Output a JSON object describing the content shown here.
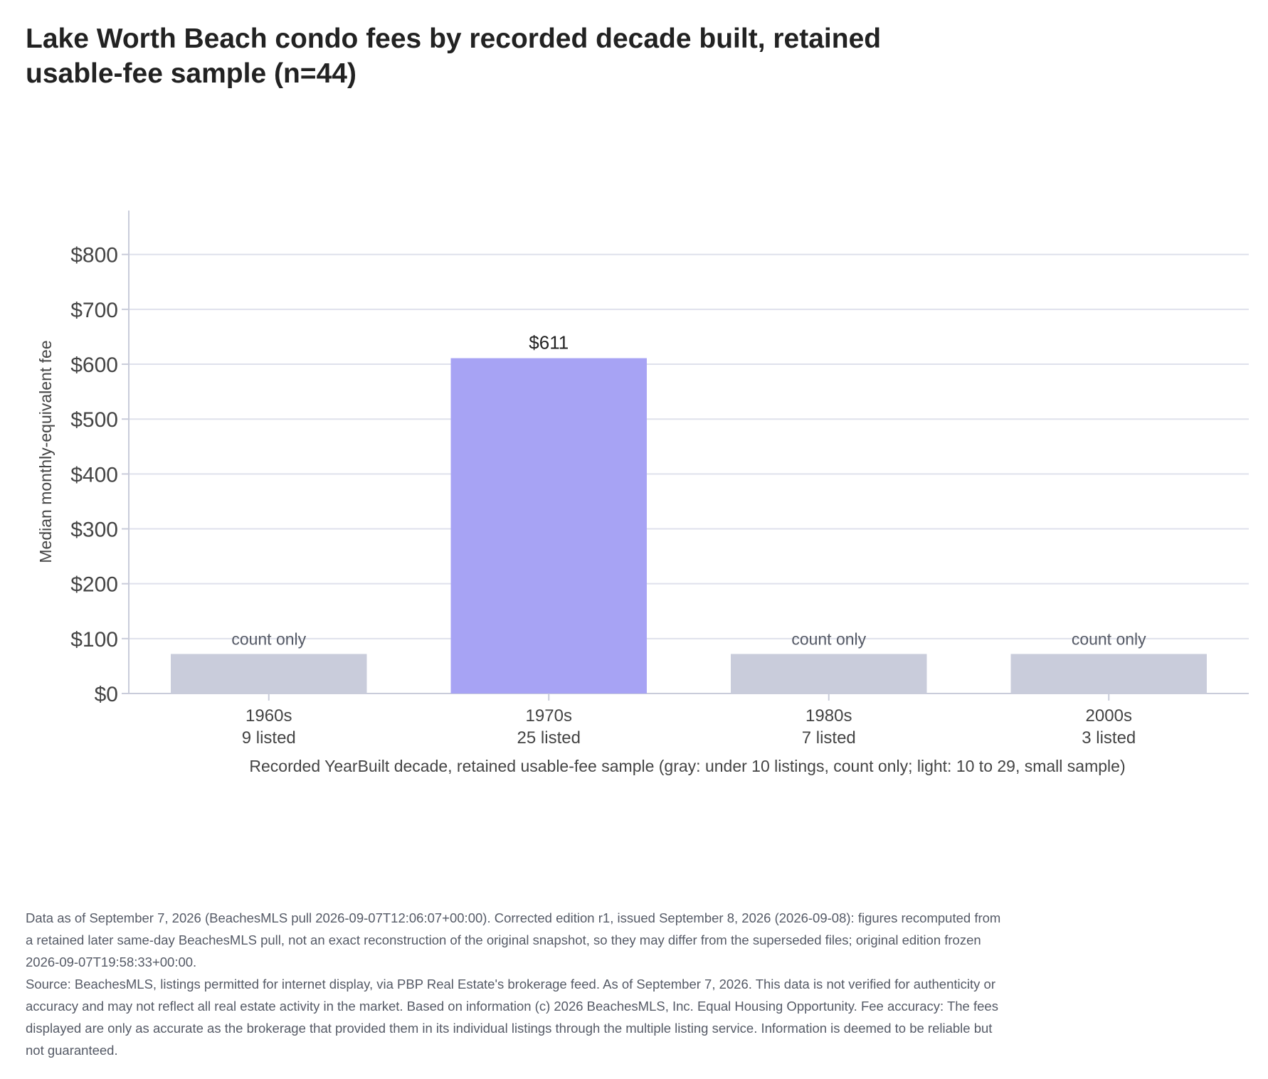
{
  "title": "Lake Worth Beach condo fees by recorded decade built, retained usable-fee sample (n=44)",
  "chart_data": {
    "type": "bar",
    "title": "Lake Worth Beach condo fees by recorded decade built, retained usable-fee sample (n=44)",
    "xlabel": "Recorded YearBuilt decade, retained usable-fee sample (gray: under 10 listings, count only; light: 10 to 29, small sample)",
    "ylabel": "Median monthly-equivalent fee",
    "ylim": [
      0,
      880
    ],
    "yticks": [
      0,
      100,
      200,
      300,
      400,
      500,
      600,
      700,
      800
    ],
    "ytick_labels": [
      "$0",
      "$100",
      "$200",
      "$300",
      "$400",
      "$500",
      "$600",
      "$700",
      "$800"
    ],
    "grid": true,
    "categories": [
      "1960s",
      "1970s",
      "1980s",
      "2000s"
    ],
    "counts_labels": [
      "9 listed",
      "25 listed",
      "7 listed",
      "3 listed"
    ],
    "counts": [
      9,
      25,
      7,
      3
    ],
    "values": [
      null,
      611,
      null,
      null
    ],
    "placeholder_value": 72,
    "bar_labels": [
      "count only",
      "$611",
      "count only",
      "count only"
    ],
    "bar_kinds": [
      "count-only",
      "value",
      "count-only",
      "count-only"
    ],
    "colors": {
      "value": "#a7a3f4",
      "count-only": "#c9ccdb",
      "grid": "#dfe1ec",
      "axis": "#c9ccda"
    }
  },
  "footnotes": [
    "Data as of September 7, 2026 (BeachesMLS pull 2026-09-07T12:06:07+00:00). Corrected edition r1, issued September 8, 2026 (2026-09-08): figures recomputed from a retained later same-day BeachesMLS pull, not an exact reconstruction of the original snapshot, so they may differ from the superseded files; original edition frozen 2026-09-07T19:58:33+00:00.",
    "Source: BeachesMLS, listings permitted for internet display, via PBP Real Estate's brokerage feed. As of September 7, 2026. This data is not verified for authenticity or accuracy and may not reflect all real estate activity in the market. Based on information (c) 2026 BeachesMLS, Inc. Equal Housing Opportunity. Fee accuracy: The fees displayed are only as accurate as the brokerage that provided them in its individual listings through the multiple listing service. Information is deemed to be reliable but not guaranteed."
  ]
}
